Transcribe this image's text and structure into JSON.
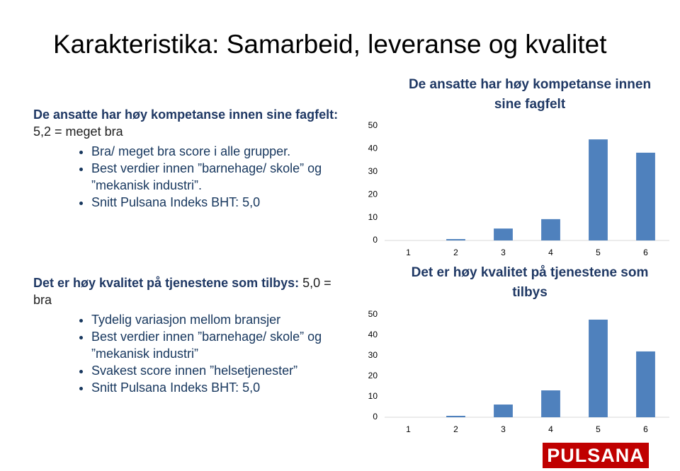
{
  "slide": {
    "title": "Karakteristika: Samarbeid, leveranse og kvalitet",
    "sections": [
      {
        "heading_bold": "De ansatte har høy kompetanse innen sine fagfelt:",
        "heading_rest": "5,2 = meget bra",
        "bullets": [
          "Bra/ meget bra score i alle grupper.",
          "Best verdier innen ”barnehage/ skole” og ”mekanisk industri”.",
          "Snitt Pulsana Indeks BHT: 5,0"
        ]
      },
      {
        "heading_bold": "Det er høy kvalitet på tjenestene som tilbys:",
        "heading_rest": "5,0 = bra",
        "bullets": [
          "Tydelig variasjon mellom bransjer",
          "Best verdier innen ”barnehage/ skole” og ”mekanisk industri”",
          "Svakest score innen ”helsetjenester”",
          "Snitt Pulsana Indeks BHT: 5,0"
        ]
      }
    ],
    "logo": "PULSANA"
  },
  "chart_data": [
    {
      "type": "bar",
      "title": "De ansatte har høy kompetanse innen sine fagfelt",
      "categories": [
        "1",
        "2",
        "3",
        "4",
        "5",
        "6"
      ],
      "values": [
        0,
        0.6,
        5.2,
        9.3,
        44.1,
        38.3
      ],
      "color": "#4f81bd",
      "ylim": [
        0,
        50
      ],
      "yticks": [
        0,
        10,
        20,
        30,
        40,
        50
      ],
      "grid": false
    },
    {
      "type": "bar",
      "title": "Det er høy kvalitet på tjenestene som tilbys",
      "categories": [
        "1",
        "2",
        "3",
        "4",
        "5",
        "6"
      ],
      "values": [
        0,
        0.7,
        6.2,
        13.1,
        47.6,
        32.1
      ],
      "color": "#4f81bd",
      "ylim": [
        0,
        50
      ],
      "yticks": [
        0,
        10,
        20,
        30,
        40,
        50
      ],
      "grid": false
    }
  ]
}
